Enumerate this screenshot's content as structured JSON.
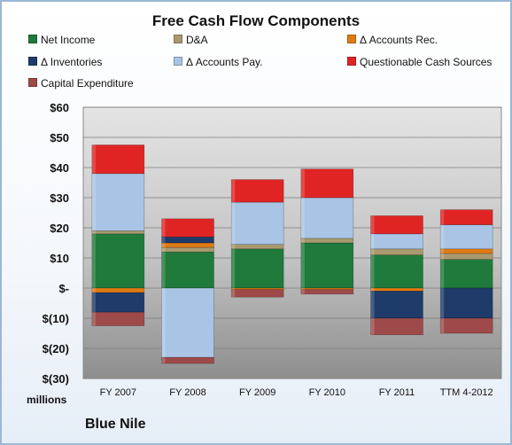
{
  "chart_data": {
    "type": "bar",
    "stacked": true,
    "title": "Free Cash Flow Components",
    "categories": [
      "FY 2007",
      "FY 2008",
      "FY 2009",
      "FY 2010",
      "FY 2011",
      "TTM 4-2012"
    ],
    "ylim": [
      -30,
      60
    ],
    "y_ticks": [
      "$(30)",
      "$(20)",
      "$(10)",
      "$-",
      "$10",
      "$20",
      "$30",
      "$40",
      "$50",
      "$60"
    ],
    "y_unit_label": "millions",
    "grid": true,
    "legend_position": "top",
    "series": [
      {
        "name": "Net Income",
        "color": "#1f7a3c",
        "values": [
          18,
          12,
          13,
          15,
          11,
          9.5
        ]
      },
      {
        "name": "D&A",
        "color": "#a89a6e",
        "values": [
          1,
          1.5,
          1.5,
          1.5,
          2,
          2
        ]
      },
      {
        "name": "Δ Accounts Rec.",
        "color": "#e07b14",
        "values": [
          -1.5,
          1.5,
          -0.5,
          -0.5,
          -1,
          1.5
        ]
      },
      {
        "name": "Δ Inventories",
        "color": "#1f3b6a",
        "values": [
          -6.5,
          2,
          0,
          0,
          -9,
          -10
        ]
      },
      {
        "name": "Δ Accounts Pay.",
        "color": "#a9c4e4",
        "values": [
          19,
          -23,
          14,
          13.5,
          5,
          8
        ]
      },
      {
        "name": "Questionable Cash Sources",
        "color": "#e02424",
        "values": [
          9.5,
          6,
          7.5,
          9.5,
          6,
          5
        ]
      },
      {
        "name": "Capital Expenditure",
        "color": "#9e4a4a",
        "values": [
          -4.5,
          -2,
          -2.5,
          -1.5,
          -5.5,
          -5
        ]
      }
    ]
  },
  "footer": {
    "company": "Blue Nile"
  }
}
